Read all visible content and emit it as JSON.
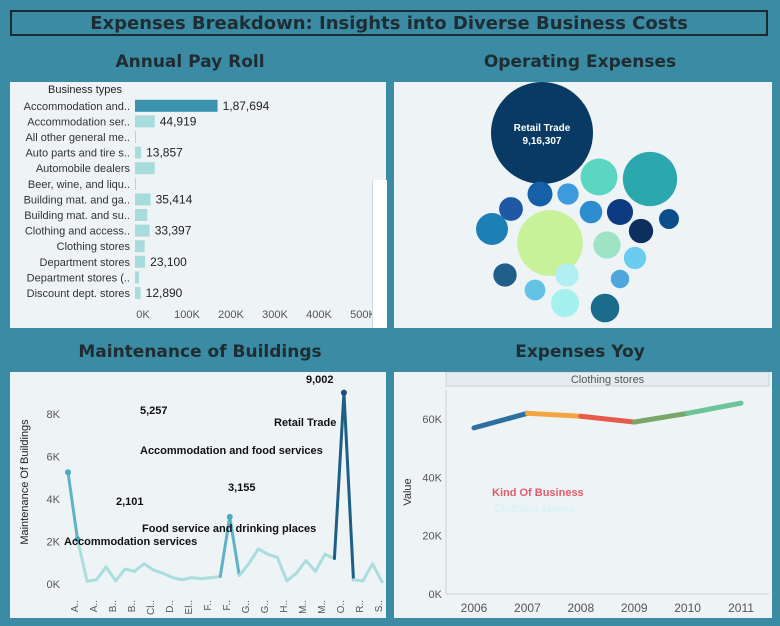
{
  "dashboard_title": "Expenses Breakdown: Insights into Diverse Business Costs",
  "sections": {
    "payroll": "Annual Pay Roll",
    "operating": "Operating Expenses",
    "maintenance": "Maintenance of Buildings",
    "yoy": "Expenses Yoy"
  },
  "colors": {
    "background": "#3a8ba3",
    "panel": "#eef3f5",
    "bar_main": "#3b93b0",
    "bar_light": "#a8dcdc"
  },
  "chart_data": [
    {
      "id": "payroll",
      "type": "bar",
      "orientation": "horizontal",
      "header": "Business types",
      "categories": [
        "Accommodation and..",
        "Accommodation ser..",
        "All other general me..",
        "Auto parts and tire s..",
        "Automobile dealers",
        "Beer, wine, and liqu..",
        "Building mat. and ga..",
        "Building mat. and su..",
        "Clothing and access..",
        "Clothing stores",
        "Department stores",
        "Department stores (..",
        "Discount dept. stores"
      ],
      "values": [
        187694,
        44919,
        1500,
        13857,
        45000,
        2000,
        35414,
        28000,
        33397,
        22000,
        23100,
        9000,
        12890
      ],
      "labels": [
        "1,87,694",
        "44,919",
        "",
        "13,857",
        "",
        "",
        "35,414",
        "",
        "33,397",
        "",
        "23,100",
        "",
        "12,890"
      ],
      "xticks": [
        "0K",
        "100K",
        "200K",
        "300K",
        "400K",
        "500K"
      ],
      "xlim": [
        0,
        500000
      ]
    },
    {
      "id": "operating",
      "type": "bubble",
      "label": {
        "name": "Retail Trade",
        "value": "9,16,307"
      },
      "bubbles": [
        916307,
        380000,
        260000,
        120000,
        90000,
        55000,
        50000,
        60000,
        45000,
        40000,
        48000,
        65000,
        70000,
        52000,
        38000,
        44000,
        30000,
        35000,
        72000,
        48000
      ]
    },
    {
      "id": "maintenance",
      "type": "line",
      "ylabel": "Maintenance Of Buildings",
      "yticks": [
        "0K",
        "2K",
        "4K",
        "6K",
        "8K"
      ],
      "ylim": [
        0,
        9500
      ],
      "xticks": [
        "A..",
        "A..",
        "B..",
        "B..",
        "Cl..",
        "D..",
        "El..",
        "F..",
        "F..",
        "G..",
        "G..",
        "H..",
        "M..",
        "M..",
        "O..",
        "R..",
        "S.."
      ],
      "values": [
        5257,
        2101,
        130,
        200,
        800,
        150,
        700,
        600,
        950,
        650,
        500,
        300,
        200,
        300,
        250,
        300,
        350,
        3155,
        400,
        950,
        1650,
        1400,
        1250,
        150,
        500,
        1100,
        600,
        1400,
        1200,
        9002,
        200,
        150,
        950,
        100
      ],
      "annotations": [
        {
          "value": "5,257",
          "name": "Accommodation and food services"
        },
        {
          "value": "2,101",
          "name": "Accommodation services"
        },
        {
          "value": "3,155",
          "name": "Food service and drinking places"
        },
        {
          "value": "9,002",
          "name": "Retail Trade"
        }
      ]
    },
    {
      "id": "yoy",
      "type": "line",
      "header": "Clothing stores",
      "ylabel": "Value",
      "x": [
        "2006",
        "2007",
        "2008",
        "2009",
        "2010",
        "2011"
      ],
      "values": [
        57000,
        62000,
        61000,
        59000,
        62000,
        65500
      ],
      "yticks": [
        "0K",
        "20K",
        "40K",
        "60K"
      ],
      "ylim": [
        0,
        70000
      ],
      "legend_title": "Kind Of Business",
      "legend_item": "Clothing stores"
    }
  ]
}
